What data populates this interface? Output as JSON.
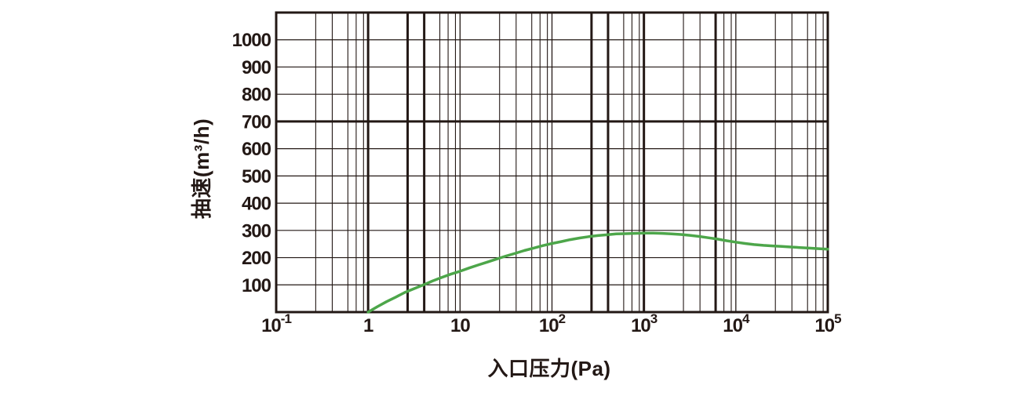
{
  "chart_data": {
    "type": "line",
    "title": "",
    "xlabel": "入口压力(Pa)",
    "ylabel": "抽速(m³/h)",
    "x_scale": "log",
    "x_log_range": [
      -1,
      5
    ],
    "ylim": [
      0,
      1100
    ],
    "y_grid_step": 100,
    "grid": "on",
    "x_ticks": [
      {
        "base": "10",
        "sup": "-1",
        "log": -1
      },
      {
        "base": "1",
        "sup": "",
        "log": 0
      },
      {
        "base": "10",
        "sup": "",
        "log": 1
      },
      {
        "base": "10",
        "sup": "2",
        "log": 2
      },
      {
        "base": "10",
        "sup": "3",
        "log": 3
      },
      {
        "base": "10",
        "sup": "4",
        "log": 4
      },
      {
        "base": "10",
        "sup": "5",
        "log": 5
      }
    ],
    "y_ticks": [
      100,
      200,
      300,
      400,
      500,
      600,
      700,
      800,
      900,
      1000
    ],
    "minor_fractions": [
      0.43,
      0.61,
      0.78,
      0.87,
      0.95
    ],
    "thick_vertical_log": [
      0,
      0.43,
      0.61,
      2.43,
      2.61,
      3,
      3.78
    ],
    "thick_horizontal_values": [
      700
    ],
    "colors": {
      "ink": "#231815",
      "curve": "#4DA64A",
      "background": "#FFFFFF"
    },
    "series": [
      {
        "name": "抽速",
        "points": [
          [
            1,
            0
          ],
          [
            1.26,
            20
          ],
          [
            1.58,
            38
          ],
          [
            2,
            55
          ],
          [
            2.5,
            72
          ],
          [
            3.16,
            86
          ],
          [
            4,
            100
          ],
          [
            5,
            114
          ],
          [
            6.3,
            127
          ],
          [
            7.9,
            139
          ],
          [
            10,
            150
          ],
          [
            12.6,
            162
          ],
          [
            15.8,
            173
          ],
          [
            20,
            184
          ],
          [
            25,
            195
          ],
          [
            31.6,
            206
          ],
          [
            40,
            216
          ],
          [
            50,
            226
          ],
          [
            63,
            235
          ],
          [
            79,
            244
          ],
          [
            100,
            252
          ],
          [
            126,
            259
          ],
          [
            158,
            266
          ],
          [
            200,
            272
          ],
          [
            251,
            277
          ],
          [
            316,
            281
          ],
          [
            398,
            284
          ],
          [
            500,
            287
          ],
          [
            631,
            288
          ],
          [
            794,
            289
          ],
          [
            1000,
            290
          ],
          [
            1260,
            290
          ],
          [
            1580,
            289
          ],
          [
            2000,
            287
          ],
          [
            2510,
            285
          ],
          [
            3160,
            282
          ],
          [
            3980,
            278
          ],
          [
            5010,
            273
          ],
          [
            6310,
            268
          ],
          [
            7940,
            262
          ],
          [
            10000,
            257
          ],
          [
            12600,
            252
          ],
          [
            15800,
            248
          ],
          [
            20000,
            245
          ],
          [
            25100,
            243
          ],
          [
            31600,
            241
          ],
          [
            39800,
            239
          ],
          [
            50100,
            237
          ],
          [
            63100,
            235
          ],
          [
            79400,
            233
          ],
          [
            100000,
            231
          ]
        ]
      }
    ]
  }
}
